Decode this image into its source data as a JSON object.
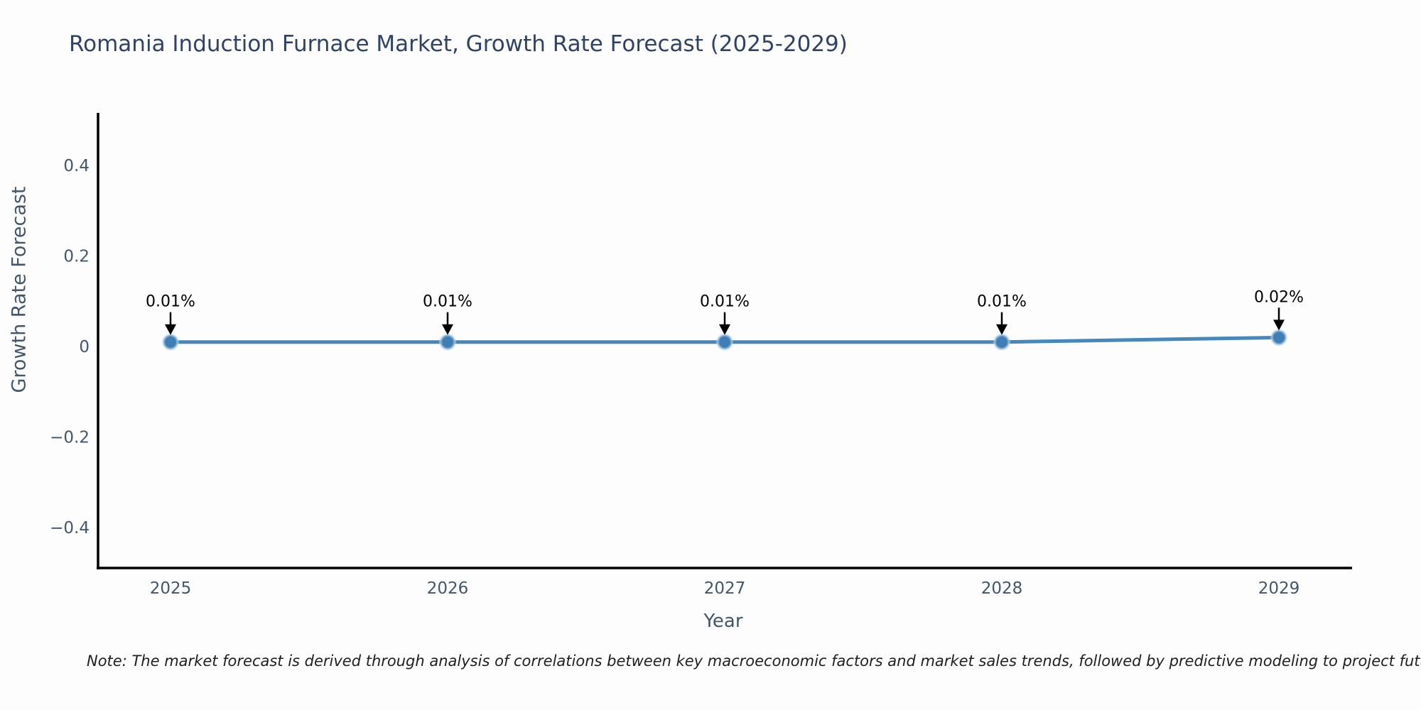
{
  "page": {
    "background": "#fdfdfd"
  },
  "chart_data": {
    "type": "line",
    "title": "Romania Induction Furnace Market, Growth Rate Forecast (2025-2029)",
    "xlabel": "Year",
    "ylabel": "Growth Rate Forecast",
    "x": [
      2025,
      2026,
      2027,
      2028,
      2029
    ],
    "series": [
      {
        "name": "Growth Rate Forecast",
        "values": [
          0.01,
          0.01,
          0.01,
          0.01,
          0.02
        ]
      }
    ],
    "annotations": [
      "0.01%",
      "0.01%",
      "0.01%",
      "0.01%",
      "0.02%"
    ],
    "y_ticks": [
      0.4,
      0.2,
      0,
      -0.2,
      -0.4
    ],
    "y_tick_labels": [
      "0.4",
      "0.2",
      "0",
      "−0.2",
      "−0.4"
    ],
    "ylim": [
      -0.489,
      0.516
    ],
    "grid": false,
    "legend": "none",
    "colors": {
      "line": "#4687bd",
      "marker": "#3f7fb6",
      "marker_halo": "#b9d4e8",
      "axis": "#000000",
      "tick_label": "#42576b",
      "title": "#2f4368",
      "annotation": "#000000",
      "note": "#1f1f1f"
    }
  },
  "note": {
    "text": "Note: The market forecast is derived through analysis of correlations between key macroeconomic factors and market sales trends, followed by predictive modeling to project future sales."
  }
}
